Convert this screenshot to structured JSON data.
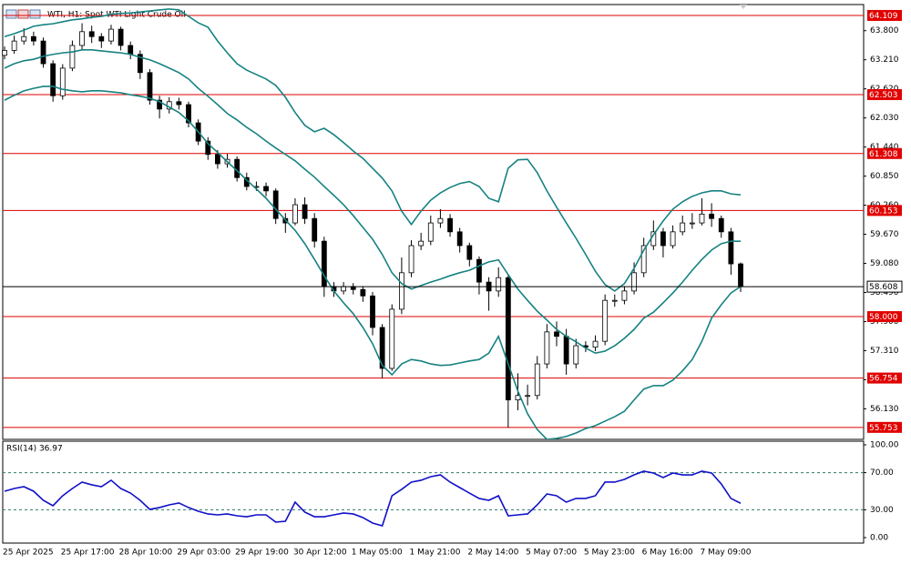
{
  "chart_data": [
    {
      "type": "candlestick",
      "title": "WTI, H1:  Spot WTI Light Crude Oil",
      "categories": [
        "25 Apr 2025",
        null,
        null,
        null,
        null,
        null,
        "25 Apr 17:00",
        null,
        null,
        null,
        null,
        null,
        "28 Apr 10:00",
        null,
        null,
        null,
        null,
        null,
        "29 Apr 03:00",
        null,
        null,
        null,
        null,
        null,
        "29 Apr 19:00",
        null,
        null,
        null,
        null,
        null,
        "30 Apr 12:00",
        null,
        null,
        null,
        null,
        null,
        "1 May 05:00",
        null,
        null,
        null,
        null,
        null,
        "1 May 21:00",
        null,
        null,
        null,
        null,
        null,
        "2 May 14:00",
        null,
        null,
        null,
        null,
        null,
        "5 May 07:00",
        null,
        null,
        null,
        null,
        null,
        "5 May 23:00",
        null,
        null,
        null,
        null,
        null,
        "6 May 16:00",
        null,
        null,
        null,
        null,
        null,
        "7 May 09:00",
        null,
        null,
        null,
        null
      ],
      "open": [
        63.3,
        63.4,
        63.59,
        63.68,
        63.59,
        63.13,
        62.48,
        63.04,
        63.5,
        63.78,
        63.68,
        63.59,
        63.83,
        63.5,
        63.32,
        62.95,
        62.39,
        62.21,
        62.36,
        62.3,
        61.93,
        61.56,
        61.29,
        61.1,
        61.19,
        60.82,
        60.64,
        60.64,
        60.55,
        59.99,
        59.9,
        60.27,
        59.99,
        59.53,
        58.61,
        58.52,
        58.61,
        58.55,
        58.42,
        57.78,
        56.95,
        58.15,
        58.89,
        59.44,
        59.53,
        59.9,
        59.99,
        59.72,
        59.44,
        59.16,
        58.7,
        58.52,
        58.79,
        56.31,
        56.4,
        56.4,
        57.04,
        57.69,
        57.6,
        57.04,
        57.41,
        57.38,
        57.5,
        58.33,
        58.33,
        58.52,
        58.89,
        59.44,
        59.72,
        59.44,
        59.72,
        59.9,
        59.9,
        60.08,
        59.99,
        59.72,
        59.07
      ],
      "high": [
        63.48,
        63.7,
        63.85,
        63.78,
        63.66,
        63.2,
        63.12,
        63.6,
        63.95,
        63.9,
        63.75,
        63.92,
        63.88,
        63.58,
        63.4,
        63.02,
        62.48,
        62.45,
        62.44,
        62.36,
        62.0,
        61.64,
        61.38,
        61.3,
        61.25,
        60.92,
        60.74,
        60.72,
        60.6,
        60.1,
        60.4,
        60.42,
        60.1,
        59.62,
        58.7,
        58.7,
        58.68,
        58.62,
        58.5,
        57.85,
        58.25,
        59.2,
        59.55,
        59.7,
        60.05,
        60.18,
        60.08,
        59.8,
        59.5,
        59.22,
        58.8,
        59.0,
        58.85,
        56.85,
        56.62,
        57.2,
        57.85,
        57.9,
        57.75,
        57.55,
        57.5,
        57.62,
        58.45,
        58.45,
        58.62,
        59.1,
        59.6,
        59.95,
        59.8,
        59.85,
        60.05,
        60.1,
        60.4,
        60.3,
        60.05,
        59.8,
        59.1
      ],
      "low": [
        63.22,
        63.33,
        63.52,
        63.5,
        63.05,
        62.36,
        62.4,
        62.98,
        63.42,
        63.55,
        63.45,
        63.52,
        63.4,
        63.22,
        62.82,
        62.3,
        62.02,
        62.12,
        62.2,
        61.84,
        61.48,
        61.18,
        61.0,
        61.02,
        60.74,
        60.56,
        60.55,
        60.44,
        59.88,
        59.7,
        59.85,
        59.88,
        59.4,
        58.4,
        58.4,
        58.45,
        58.45,
        58.3,
        57.62,
        56.75,
        56.9,
        58.05,
        58.8,
        59.35,
        59.45,
        59.8,
        59.62,
        59.3,
        59.02,
        58.45,
        58.12,
        58.4,
        55.75,
        56.1,
        56.2,
        56.32,
        56.95,
        57.4,
        56.82,
        56.95,
        57.28,
        57.3,
        57.42,
        58.2,
        58.25,
        58.45,
        58.8,
        59.35,
        59.2,
        59.38,
        59.65,
        59.78,
        59.85,
        59.82,
        59.6,
        58.85,
        58.5
      ],
      "close": [
        63.4,
        63.59,
        63.68,
        63.59,
        63.13,
        62.48,
        63.04,
        63.5,
        63.78,
        63.68,
        63.59,
        63.83,
        63.5,
        63.32,
        62.95,
        62.39,
        62.21,
        62.36,
        62.3,
        61.93,
        61.56,
        61.29,
        61.1,
        61.19,
        60.82,
        60.64,
        60.64,
        60.55,
        59.99,
        59.9,
        60.27,
        59.99,
        59.53,
        58.61,
        58.52,
        58.61,
        58.55,
        58.42,
        57.78,
        56.95,
        58.15,
        58.89,
        59.44,
        59.53,
        59.9,
        59.99,
        59.72,
        59.44,
        59.16,
        58.7,
        58.52,
        58.79,
        56.31,
        56.4,
        56.4,
        57.04,
        57.69,
        57.6,
        57.04,
        57.41,
        57.38,
        57.5,
        58.33,
        58.33,
        58.52,
        58.89,
        59.44,
        59.72,
        59.44,
        59.72,
        59.9,
        59.9,
        60.08,
        59.99,
        59.72,
        59.07,
        58.61
      ],
      "up_color": "#ffffff",
      "down_color": "#000000",
      "wick_color": "#000000",
      "series": [
        {
          "color": "#168281",
          "values": [
            63.68,
            63.74,
            63.81,
            63.89,
            63.92,
            63.94,
            63.98,
            64.02,
            64.04,
            64.07,
            64.09,
            64.13,
            64.15,
            64.16,
            64.18,
            64.2,
            64.22,
            64.24,
            64.22,
            64.09,
            63.96,
            63.87,
            63.59,
            63.35,
            63.13,
            63.0,
            62.91,
            62.82,
            62.69,
            62.45,
            62.14,
            61.88,
            61.75,
            61.82,
            61.69,
            61.53,
            61.36,
            61.21,
            61.01,
            60.81,
            60.55,
            60.14,
            59.87,
            60.14,
            60.36,
            60.51,
            60.62,
            60.7,
            60.74,
            60.64,
            60.4,
            60.33,
            61.01,
            61.18,
            61.19,
            60.92,
            60.55,
            60.22,
            59.9,
            59.59,
            59.26,
            58.92,
            58.65,
            58.52,
            58.67,
            58.98,
            59.35,
            59.66,
            59.94,
            60.18,
            60.33,
            60.44,
            60.51,
            60.55,
            60.55,
            60.49,
            60.47
          ]
        },
        {
          "color": "#168281",
          "values": [
            63.04,
            63.13,
            63.19,
            63.22,
            63.28,
            63.32,
            63.35,
            63.37,
            63.41,
            63.41,
            63.39,
            63.37,
            63.35,
            63.32,
            63.26,
            63.21,
            63.13,
            63.04,
            62.95,
            62.82,
            62.63,
            62.47,
            62.3,
            62.12,
            61.99,
            61.84,
            61.71,
            61.56,
            61.42,
            61.29,
            61.16,
            60.99,
            60.83,
            60.64,
            60.46,
            60.27,
            60.05,
            59.81,
            59.57,
            59.26,
            58.89,
            58.67,
            58.56,
            58.63,
            58.7,
            58.76,
            58.83,
            58.89,
            58.94,
            59.03,
            59.11,
            59.15,
            58.85,
            58.56,
            58.33,
            58.11,
            57.93,
            57.74,
            57.6,
            57.49,
            57.36,
            57.26,
            57.3,
            57.41,
            57.56,
            57.74,
            57.97,
            58.09,
            58.28,
            58.48,
            58.7,
            58.94,
            59.16,
            59.35,
            59.48,
            59.53,
            59.53
          ]
        },
        {
          "color": "#168281",
          "values": [
            62.39,
            62.49,
            62.58,
            62.63,
            62.67,
            62.67,
            62.61,
            62.58,
            62.56,
            62.58,
            62.58,
            62.56,
            62.54,
            62.5,
            62.47,
            62.43,
            62.36,
            62.25,
            62.14,
            61.97,
            61.75,
            61.51,
            61.33,
            61.14,
            60.96,
            60.77,
            60.59,
            60.4,
            60.18,
            59.96,
            59.75,
            59.48,
            59.16,
            58.83,
            58.52,
            58.28,
            58.06,
            57.78,
            57.45,
            57.01,
            56.82,
            57.04,
            57.13,
            57.1,
            57.04,
            57.01,
            57.02,
            57.06,
            57.1,
            57.13,
            57.26,
            57.6,
            57.04,
            56.49,
            56.03,
            55.71,
            55.51,
            55.53,
            55.57,
            55.64,
            55.73,
            55.79,
            55.88,
            55.97,
            56.08,
            56.31,
            56.53,
            56.6,
            56.6,
            56.71,
            56.9,
            57.13,
            57.5,
            57.97,
            58.24,
            58.48,
            58.61
          ]
        }
      ],
      "ylim": [
        55.51,
        64.33
      ],
      "yticks": [
        {
          "value": 63.8,
          "label": "63.800"
        },
        {
          "value": 63.21,
          "label": "63.210"
        },
        {
          "value": 62.62,
          "label": "62.620"
        },
        {
          "value": 62.03,
          "label": "62.030"
        },
        {
          "value": 61.44,
          "label": "61.440"
        },
        {
          "value": 60.85,
          "label": "60.850"
        },
        {
          "value": 60.26,
          "label": "60.260"
        },
        {
          "value": 59.67,
          "label": "59.670"
        },
        {
          "value": 59.08,
          "label": "59.080"
        },
        {
          "value": 58.49,
          "label": "58.490"
        },
        {
          "value": 57.9,
          "label": "57.900"
        },
        {
          "value": 57.31,
          "label": "57.310"
        },
        {
          "value": 56.72,
          "label": "56.720"
        },
        {
          "value": 56.13,
          "label": "56.130"
        }
      ],
      "levels": [
        64.109,
        62.503,
        61.308,
        60.153,
        {
          "value": 58,
          "label": "58.000"
        },
        56.754,
        55.753
      ],
      "level_color": "#e00000",
      "level_labels": true,
      "current": 58.608,
      "current_color": "#000000"
    },
    {
      "type": "line",
      "title": "RSI(14) 36.97",
      "color": "#1010c8",
      "values": [
        50.0,
        52.9,
        54.9,
        50.0,
        40.2,
        34.3,
        45.1,
        52.9,
        59.8,
        56.9,
        54.9,
        61.8,
        52.9,
        48.0,
        40.2,
        30.4,
        32.4,
        35.3,
        37.3,
        32.4,
        28.4,
        25.5,
        24.5,
        25.5,
        23.5,
        22.5,
        24.5,
        24.5,
        16.7,
        17.6,
        38.2,
        27.5,
        22.5,
        22.5,
        24.5,
        26.5,
        25.5,
        21.6,
        15.7,
        12.7,
        45.1,
        52.0,
        59.8,
        61.8,
        65.7,
        67.6,
        59.8,
        53.9,
        48.0,
        42.2,
        40.2,
        45.1,
        23.5,
        24.5,
        25.5,
        35.3,
        47.1,
        45.1,
        38.2,
        42.2,
        42.2,
        45.1,
        59.8,
        59.8,
        62.7,
        67.6,
        71.6,
        69.6,
        64.7,
        69.6,
        67.6,
        67.6,
        71.6,
        69.6,
        57.8,
        42.2,
        36.97
      ],
      "ylim": [
        -5.9,
        103.9
      ],
      "yticks": [
        {
          "value": 100,
          "label": "100.00"
        },
        {
          "value": 70,
          "label": "70.00"
        },
        {
          "value": 30,
          "label": "30.00"
        },
        {
          "value": 0,
          "label": "0.00"
        }
      ],
      "levels": [
        70,
        30
      ],
      "level_color": "#2a7a6a",
      "level_labels": false
    }
  ]
}
